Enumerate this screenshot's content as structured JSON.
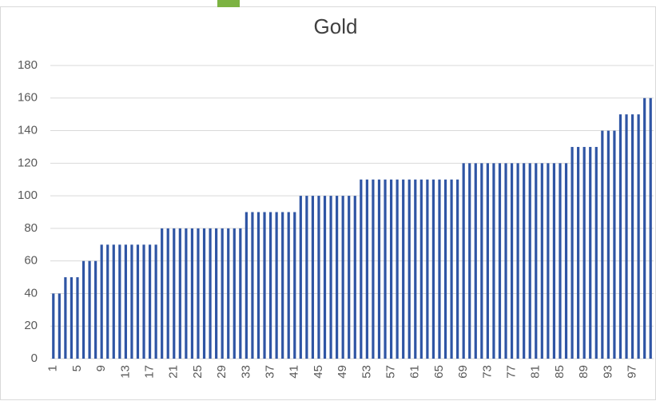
{
  "chart_data": {
    "type": "bar",
    "title": "Gold",
    "categories": [
      1,
      null,
      null,
      null,
      5,
      null,
      null,
      null,
      9,
      null,
      null,
      null,
      13,
      null,
      null,
      null,
      17,
      null,
      null,
      null,
      21,
      null,
      null,
      null,
      25,
      null,
      null,
      null,
      29,
      null,
      null,
      null,
      33,
      null,
      null,
      null,
      37,
      null,
      null,
      null,
      41,
      null,
      null,
      null,
      45,
      null,
      null,
      null,
      49,
      null,
      null,
      null,
      53,
      null,
      null,
      null,
      57,
      null,
      null,
      null,
      61,
      null,
      null,
      null,
      65,
      null,
      null,
      null,
      69,
      null,
      null,
      null,
      73,
      null,
      null,
      null,
      77,
      null,
      null,
      null,
      81,
      null,
      null,
      null,
      85,
      null,
      null,
      null,
      89,
      null,
      null,
      null,
      93,
      null,
      null,
      null,
      97,
      null,
      null,
      null
    ],
    "values": [
      40,
      40,
      50,
      50,
      50,
      60,
      60,
      60,
      70,
      70,
      70,
      70,
      70,
      70,
      70,
      70,
      70,
      70,
      80,
      80,
      80,
      80,
      80,
      80,
      80,
      80,
      80,
      80,
      80,
      80,
      80,
      80,
      90,
      90,
      90,
      90,
      90,
      90,
      90,
      90,
      90,
      100,
      100,
      100,
      100,
      100,
      100,
      100,
      100,
      100,
      100,
      110,
      110,
      110,
      110,
      110,
      110,
      110,
      110,
      110,
      110,
      110,
      110,
      110,
      110,
      110,
      110,
      110,
      120,
      120,
      120,
      120,
      120,
      120,
      120,
      120,
      120,
      120,
      120,
      120,
      120,
      120,
      120,
      120,
      120,
      120,
      130,
      130,
      130,
      130,
      130,
      140,
      140,
      140,
      150,
      150,
      150,
      150,
      160,
      160
    ],
    "color": "#2f55a4",
    "ylim": [
      0,
      180
    ],
    "yticks": [
      0,
      20,
      40,
      60,
      80,
      100,
      120,
      140,
      160,
      180
    ],
    "grid": true
  }
}
